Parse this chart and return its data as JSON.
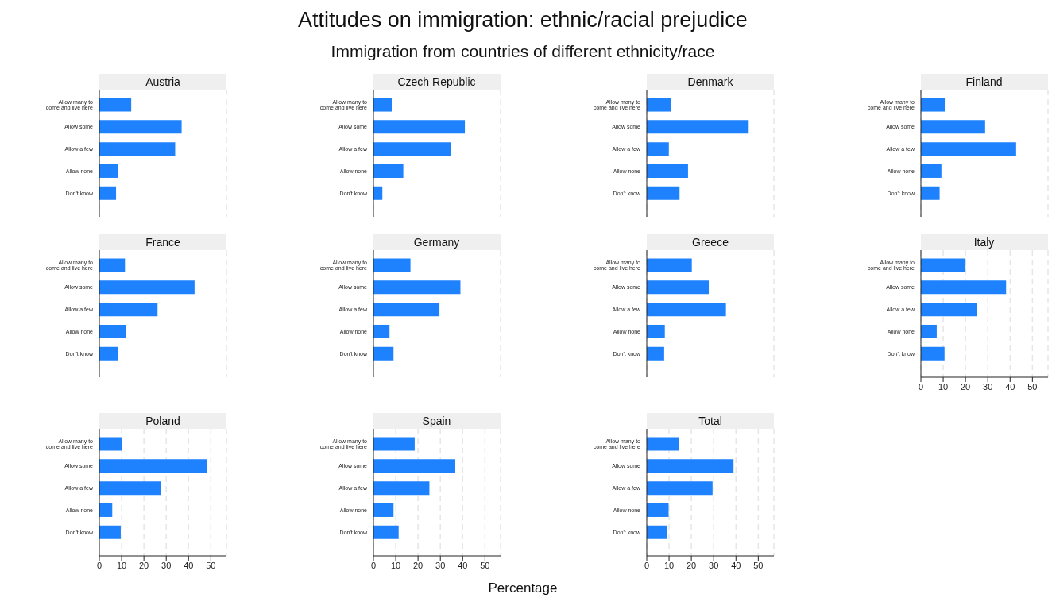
{
  "chart_data": [
    {
      "type": "other",
      "title": "Attitudes on immigration: ethnic/racial prejudice",
      "subtitle": "Immigration from countries of different ethnicity/race",
      "xlabel": "Percentage"
    },
    {
      "type": "bar",
      "orientation": "horizontal",
      "title": "Austria",
      "categories": [
        "Allow many to come and live here",
        "Allow some",
        "Allow a few",
        "Allow none",
        "Don't know"
      ],
      "values": [
        14.3,
        36.9,
        34,
        8.2,
        7.5
      ],
      "color": "#1e82ff",
      "xlim": [
        0,
        57
      ],
      "xticks": [
        0,
        10,
        20,
        30,
        40,
        50
      ],
      "grid": "x",
      "tick_labels": "y"
    },
    {
      "type": "bar",
      "orientation": "horizontal",
      "title": "Czech Republic",
      "categories": [
        "Allow many to come and live here",
        "Allow some",
        "Allow a few",
        "Allow none",
        "Don't know"
      ],
      "values": [
        8.2,
        41,
        34.8,
        13.4,
        4
      ],
      "color": "#1e82ff",
      "xlim": [
        0,
        57
      ],
      "xticks": [
        0,
        10,
        20,
        30,
        40,
        50
      ],
      "grid": "x",
      "tick_labels": "y"
    },
    {
      "type": "bar",
      "orientation": "horizontal",
      "title": "Denmark",
      "categories": [
        "Allow many to come and live here",
        "Allow some",
        "Allow a few",
        "Allow none",
        "Don't know"
      ],
      "values": [
        11,
        45.7,
        9.9,
        18.5,
        14.7
      ],
      "color": "#1e82ff",
      "xlim": [
        0,
        57
      ],
      "xticks": [
        0,
        10,
        20,
        30,
        40,
        50
      ],
      "grid": "x",
      "tick_labels": "y"
    },
    {
      "type": "bar",
      "orientation": "horizontal",
      "title": "Finland",
      "categories": [
        "Allow many to come and live here",
        "Allow some",
        "Allow a few",
        "Allow none",
        "Don't know"
      ],
      "values": [
        10.7,
        28.8,
        42.7,
        9.2,
        8.4
      ],
      "color": "#1e82ff",
      "xlim": [
        0,
        57
      ],
      "xticks": [
        0,
        10,
        20,
        30,
        40,
        50
      ],
      "grid": "x",
      "tick_labels": "y"
    },
    {
      "type": "bar",
      "orientation": "horizontal",
      "title": "France",
      "categories": [
        "Allow many to come and live here",
        "Allow some",
        "Allow a few",
        "Allow none",
        "Don't know"
      ],
      "values": [
        11.5,
        42.7,
        26.1,
        11.9,
        8.2
      ],
      "color": "#1e82ff",
      "xlim": [
        0,
        57
      ],
      "xticks": [
        0,
        10,
        20,
        30,
        40,
        50
      ],
      "grid": "x",
      "tick_labels": "y"
    },
    {
      "type": "bar",
      "orientation": "horizontal",
      "title": "Germany",
      "categories": [
        "Allow many to come and live here",
        "Allow some",
        "Allow a few",
        "Allow none",
        "Don't know"
      ],
      "values": [
        16.6,
        39,
        29.6,
        7.2,
        9
      ],
      "color": "#1e82ff",
      "xlim": [
        0,
        57
      ],
      "xticks": [
        0,
        10,
        20,
        30,
        40,
        50
      ],
      "grid": "x",
      "tick_labels": "y"
    },
    {
      "type": "bar",
      "orientation": "horizontal",
      "title": "Greece",
      "categories": [
        "Allow many to come and live here",
        "Allow some",
        "Allow a few",
        "Allow none",
        "Don't know"
      ],
      "values": [
        20.2,
        27.8,
        35.5,
        8.1,
        7.8
      ],
      "color": "#1e82ff",
      "xlim": [
        0,
        57
      ],
      "xticks": [
        0,
        10,
        20,
        30,
        40,
        50
      ],
      "grid": "x",
      "tick_labels": "y"
    },
    {
      "type": "bar",
      "orientation": "horizontal",
      "title": "Italy",
      "categories": [
        "Allow many to come and live here",
        "Allow some",
        "Allow a few",
        "Allow none",
        "Don't know"
      ],
      "values": [
        20,
        38.2,
        25.2,
        7.1,
        10.6
      ],
      "color": "#1e82ff",
      "xlim": [
        0,
        57
      ],
      "xticks": [
        0,
        10,
        20,
        30,
        40,
        50
      ],
      "grid": "x"
    },
    {
      "type": "bar",
      "orientation": "horizontal",
      "title": "Poland",
      "categories": [
        "Allow many to come and live here",
        "Allow some",
        "Allow a few",
        "Allow none",
        "Don't know"
      ],
      "values": [
        10.3,
        48.2,
        27.5,
        5.8,
        9.6
      ],
      "color": "#1e82ff",
      "xlim": [
        0,
        57
      ],
      "xticks": [
        0,
        10,
        20,
        30,
        40,
        50
      ],
      "grid": "x"
    },
    {
      "type": "bar",
      "orientation": "horizontal",
      "title": "Spain",
      "categories": [
        "Allow many to come and live here",
        "Allow some",
        "Allow a few",
        "Allow none",
        "Don't know"
      ],
      "values": [
        18.5,
        36.7,
        25.1,
        9,
        11.3
      ],
      "color": "#1e82ff",
      "xlim": [
        0,
        57
      ],
      "xticks": [
        0,
        10,
        20,
        30,
        40,
        50
      ],
      "grid": "x"
    },
    {
      "type": "bar",
      "orientation": "horizontal",
      "title": "Total",
      "categories": [
        "Allow many to come and live here",
        "Allow some",
        "Allow a few",
        "Allow none",
        "Don't know"
      ],
      "values": [
        14.3,
        38.9,
        29.5,
        9.8,
        9
      ],
      "color": "#1e82ff",
      "xlim": [
        0,
        57
      ],
      "xticks": [
        0,
        10,
        20,
        30,
        40,
        50
      ],
      "grid": "x"
    }
  ]
}
